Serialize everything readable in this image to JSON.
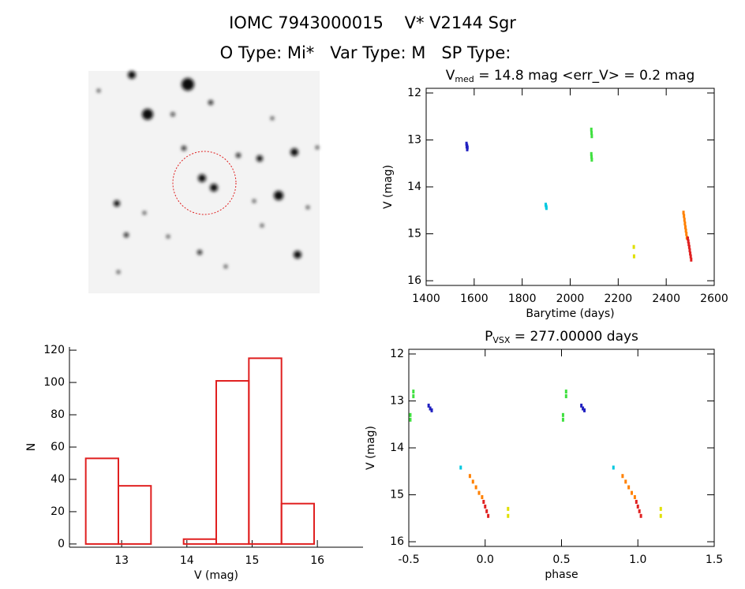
{
  "header": {
    "line1": "IOMC 7943000015    V* V2144 Sgr",
    "line2": "O Type: Mi*   Var Type: M   SP Type:"
  },
  "chart_data": [
    {
      "type": "scatter",
      "title": {
        "symbol": "V",
        "subscript": "med",
        "text": " = 14.8 mag <err_V> = 0.2 mag"
      },
      "x_label": "Barytime (days)",
      "y_label": "V (mag)",
      "xlim": [
        1400,
        2600
      ],
      "xticks": [
        1400,
        1600,
        1800,
        2000,
        2200,
        2400,
        2600
      ],
      "ylim": [
        16.1,
        11.9
      ],
      "yticks": [
        12,
        13,
        14,
        15,
        16
      ],
      "axes_box": true,
      "series": [
        {
          "color": "#2020c0",
          "x": [
            1568,
            1570,
            1572,
            1571,
            1569
          ],
          "values": [
            13.08,
            13.12,
            13.16,
            13.2,
            13.14
          ]
        },
        {
          "color": "#00c8e0",
          "x": [
            1898,
            1900,
            1901
          ],
          "values": [
            14.38,
            14.42,
            14.45
          ]
        },
        {
          "color": "#40e040",
          "x": [
            2088,
            2089,
            2090,
            2088,
            2089,
            2090
          ],
          "values": [
            12.78,
            12.85,
            12.92,
            13.3,
            13.36,
            13.42
          ]
        },
        {
          "color": "#e0e000",
          "x": [
            2265,
            2266
          ],
          "values": [
            15.28,
            15.48
          ]
        },
        {
          "color": "#ff8000",
          "x": [
            2472,
            2474,
            2476,
            2478,
            2480,
            2482,
            2484,
            2486
          ],
          "values": [
            14.55,
            14.62,
            14.7,
            14.78,
            14.86,
            14.93,
            15.0,
            15.08
          ]
        },
        {
          "color": "#e02020",
          "x": [
            2490,
            2492,
            2494,
            2496,
            2498,
            2500,
            2502,
            2504
          ],
          "values": [
            15.1,
            15.16,
            15.22,
            15.28,
            15.35,
            15.42,
            15.48,
            15.55
          ]
        }
      ]
    },
    {
      "type": "histogram",
      "x_label": "V (mag)",
      "y_label": "N",
      "xlim": [
        12.2,
        16.7
      ],
      "xticks": [
        13,
        14,
        15,
        16
      ],
      "ylim": [
        -2,
        122
      ],
      "yticks": [
        0,
        20,
        40,
        60,
        80,
        100,
        120
      ],
      "axes_box": false,
      "color": "#e02020",
      "bins": [
        12.45,
        12.95,
        13.45,
        13.95,
        14.45,
        14.95,
        15.45,
        15.95
      ],
      "values": [
        53,
        36,
        0,
        3,
        101,
        115,
        25
      ]
    },
    {
      "type": "scatter",
      "title": {
        "symbol": "P",
        "subscript": "VSX",
        "text": " = 277.00000 days"
      },
      "x_label": "phase",
      "y_label": "V (mag)",
      "xlim": [
        -0.5,
        1.5
      ],
      "xticks": [
        -0.5,
        {
          "value": 0,
          "label": "0.0"
        },
        0.5,
        {
          "value": 1,
          "label": "1.0"
        },
        1.5
      ],
      "ylim": [
        16.1,
        11.9
      ],
      "yticks": [
        12,
        13,
        14,
        15,
        16
      ],
      "axes_box": true,
      "series": [
        {
          "color": "#2020c0",
          "x": [
            -0.37,
            -0.36,
            -0.35,
            0.63,
            0.64,
            0.65
          ],
          "values": [
            13.1,
            13.16,
            13.2,
            13.1,
            13.16,
            13.2
          ]
        },
        {
          "color": "#00c8e0",
          "x": [
            -0.16,
            0.84
          ],
          "values": [
            14.42,
            14.42
          ]
        },
        {
          "color": "#40e040",
          "x": [
            -0.47,
            -0.47,
            -0.49,
            -0.49,
            0.53,
            0.53,
            0.51,
            0.51
          ],
          "values": [
            12.8,
            12.9,
            13.3,
            13.4,
            12.8,
            12.9,
            13.3,
            13.4
          ]
        },
        {
          "color": "#e0e000",
          "x": [
            0.15,
            0.15,
            1.15,
            1.15
          ],
          "values": [
            15.3,
            15.45,
            15.3,
            15.45
          ]
        },
        {
          "color": "#ff8000",
          "x": [
            -0.1,
            -0.08,
            -0.06,
            -0.04,
            -0.02,
            0.9,
            0.92,
            0.94,
            0.96,
            0.98
          ],
          "values": [
            14.6,
            14.72,
            14.84,
            14.96,
            15.05,
            14.6,
            14.72,
            14.84,
            14.96,
            15.05
          ]
        },
        {
          "color": "#e02020",
          "x": [
            -0.01,
            0.0,
            0.01,
            0.02,
            0.99,
            1.0,
            1.01,
            1.02
          ],
          "values": [
            15.15,
            15.25,
            15.35,
            15.45,
            15.15,
            15.25,
            15.35,
            15.45
          ]
        }
      ]
    }
  ]
}
